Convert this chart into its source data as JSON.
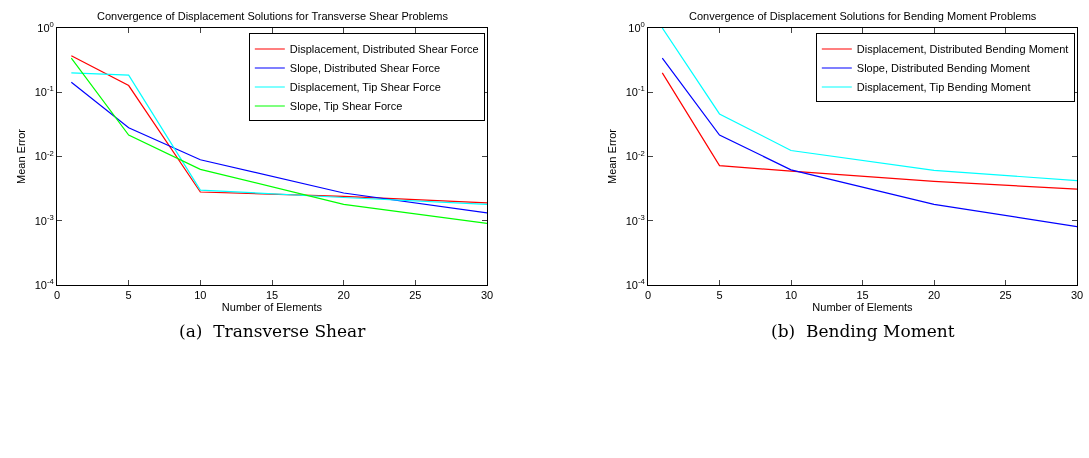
{
  "chart_data": [
    {
      "type": "line",
      "title": "Convergence of Displacement Solutions for Transverse Shear Problems",
      "xlabel": "Number of Elements",
      "ylabel": "Mean Error",
      "log": "y",
      "grid": false,
      "legend": "top right",
      "marker": "none",
      "line_style": "solid",
      "xlim": [
        0,
        30
      ],
      "xticks": [
        0,
        5,
        10,
        15,
        20,
        25,
        30
      ],
      "ylim": [
        0.0001,
        1
      ],
      "yticks": [
        {
          "value": 0.0001,
          "label": "10$^{-4}$"
        },
        {
          "value": 0.001,
          "label": "10$^{-3}$"
        },
        {
          "value": 0.01,
          "label": "10$^{-2}$"
        },
        {
          "value": 0.1,
          "label": "10$^{-1}$"
        },
        {
          "value": 1,
          "label": "10$^{0}$"
        }
      ],
      "x": [
        1,
        5,
        10,
        20,
        30
      ],
      "annotations": [
        "(a)  Transverse Shear"
      ],
      "series": [
        {
          "name": "Displacement, Distributed Shear Force",
          "color": "#ff0000",
          "values": [
            0.37,
            0.127,
            0.0028,
            0.0024,
            0.0019
          ]
        },
        {
          "name": "Slope, Distributed Shear Force",
          "color": "#0000ff",
          "values": [
            0.143,
            0.028,
            0.0089,
            0.0027,
            0.00133
          ]
        },
        {
          "name": "Displacement, Tip Shear Force",
          "color": "#00ffff",
          "values": [
            0.2,
            0.185,
            0.003,
            0.0023,
            0.0018
          ]
        },
        {
          "name": "Slope, Tip Shear Force",
          "color": "#00ff00",
          "values": [
            0.34,
            0.0216,
            0.0063,
            0.0018,
            0.00091
          ]
        }
      ]
    },
    {
      "type": "line",
      "title": "Convergence of Displacement Solutions for Bending Moment Problems",
      "xlabel": "Number of Elements",
      "ylabel": "Mean Error",
      "log": "y",
      "grid": false,
      "legend": "top right",
      "marker": "none",
      "line_style": "solid",
      "xlim": [
        0,
        30
      ],
      "xticks": [
        0,
        5,
        10,
        15,
        20,
        25,
        30
      ],
      "ylim": [
        0.0001,
        1
      ],
      "yticks": [
        {
          "value": 0.0001,
          "label": "10$^{-4}$"
        },
        {
          "value": 0.001,
          "label": "10$^{-3}$"
        },
        {
          "value": 0.01,
          "label": "10$^{-2}$"
        },
        {
          "value": 0.1,
          "label": "10$^{-1}$"
        },
        {
          "value": 1,
          "label": "10$^{0}$"
        }
      ],
      "x": [
        1,
        5,
        10,
        20,
        30
      ],
      "annotations": [
        "(b)  Bending Moment"
      ],
      "series": [
        {
          "name": "Displacement, Distributed Bending Moment",
          "color": "#ff0000",
          "values": [
            0.2,
            0.0072,
            0.0059,
            0.0041,
            0.0031
          ]
        },
        {
          "name": "Slope, Distributed Bending Moment",
          "color": "#0000ff",
          "values": [
            0.34,
            0.0216,
            0.0062,
            0.0018,
            0.00081
          ]
        },
        {
          "name": "Displacement, Tip Bending Moment",
          "color": "#00ffff",
          "values": [
            1.0,
            0.046,
            0.0124,
            0.0061,
            0.0042
          ]
        }
      ]
    }
  ]
}
